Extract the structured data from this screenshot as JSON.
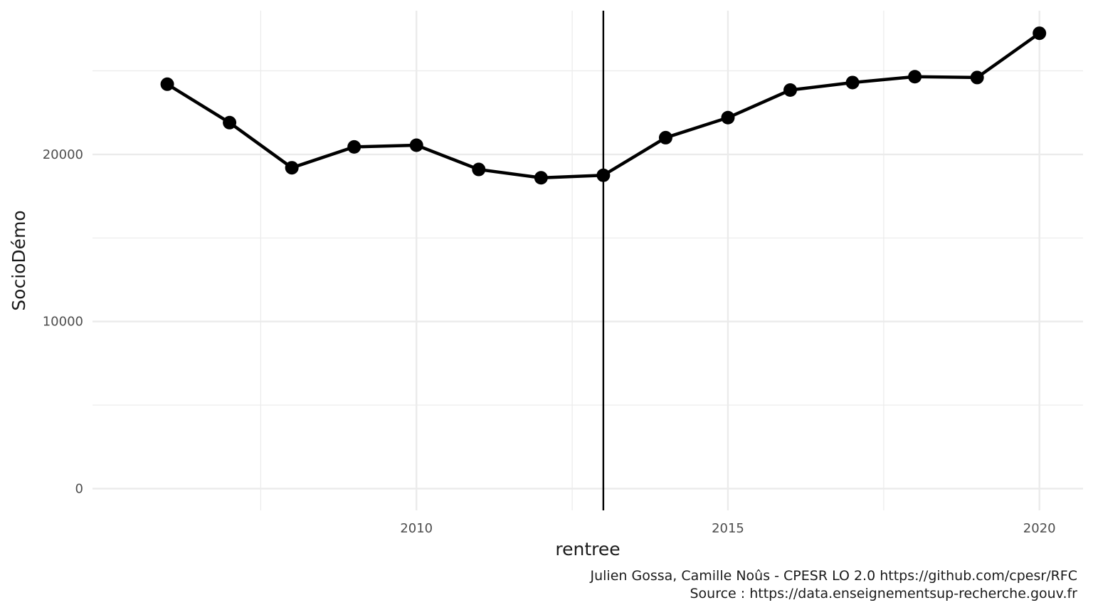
{
  "chart_data": {
    "type": "line",
    "title": "",
    "xlabel": "rentree",
    "ylabel": "SocioDémo",
    "x": [
      2006,
      2007,
      2008,
      2009,
      2010,
      2011,
      2012,
      2013,
      2014,
      2015,
      2016,
      2017,
      2018,
      2019,
      2020
    ],
    "series": [
      {
        "values": [
          24200,
          21900,
          19200,
          20450,
          20550,
          19100,
          18600,
          18750,
          21000,
          22200,
          23850,
          24300,
          24650,
          24600,
          27250
        ]
      }
    ],
    "xlim": [
      2004.8,
      2020.7
    ],
    "ylim": [
      -1300,
      28600
    ],
    "x_ticks": [
      2010,
      2015,
      2020
    ],
    "x_tick_labels": [
      "2010",
      "2015",
      "2020"
    ],
    "y_ticks": [
      0,
      10000,
      20000
    ],
    "y_tick_labels": [
      "0",
      "10000",
      "20000"
    ],
    "vline_x": 2013,
    "grid": true,
    "legend": "none",
    "line_color": "#000000",
    "grid_color": "#ebebeb"
  },
  "caption": {
    "line1": "Julien Gossa, Camille Noûs - CPESR LO 2.0 https://github.com/cpesr/RFC",
    "line2": "Source : https://data.enseignementsup-recherche.gouv.fr"
  }
}
